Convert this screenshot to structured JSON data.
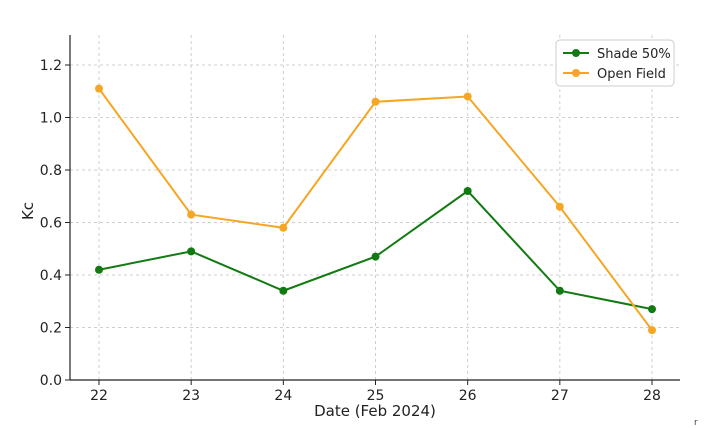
{
  "chart_data": {
    "type": "line",
    "title": "",
    "xlabel": "Date (Feb 2024)",
    "ylabel": "Kc",
    "x": [
      22,
      23,
      24,
      25,
      26,
      27,
      28
    ],
    "ylim": [
      0,
      1.3
    ],
    "yticks": [
      "0.0",
      "0.2",
      "0.4",
      "0.6",
      "0.8",
      "1.0",
      "1.2"
    ],
    "series": [
      {
        "name": "Shade 50%",
        "color": "#117a11",
        "values": [
          0.42,
          0.49,
          0.34,
          0.47,
          0.72,
          0.34,
          0.27
        ]
      },
      {
        "name": "Open Field",
        "color": "#f5a623",
        "values": [
          1.11,
          0.63,
          0.58,
          1.06,
          1.08,
          0.66,
          0.19
        ]
      }
    ],
    "grid": true,
    "legend_position": "top-right"
  }
}
